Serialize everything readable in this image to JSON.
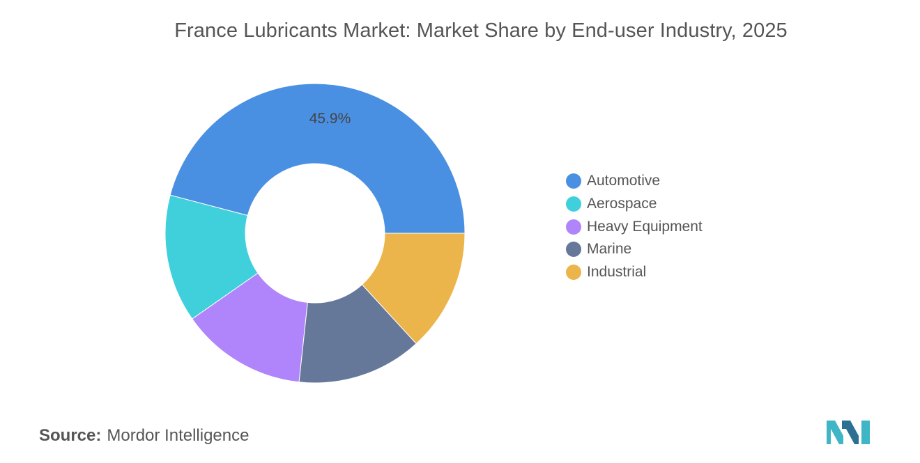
{
  "chart_data": {
    "type": "pie",
    "title": "France Lubricants Market: Market Share by End-user Industry, 2025",
    "categories": [
      "Automotive",
      "Aerospace",
      "Heavy Equipment",
      "Marine",
      "Industrial"
    ],
    "values": [
      45.9,
      13.8,
      13.6,
      13.5,
      13.2
    ],
    "data_labels": [
      {
        "category": "Automotive",
        "text": "45.9%"
      }
    ],
    "colors": [
      "#4a90e2",
      "#40d0dc",
      "#b085fb",
      "#66789a",
      "#ebb54b"
    ],
    "donut": true,
    "legend_position": "right"
  },
  "source": {
    "label": "Source:",
    "text": "Mordor Intelligence"
  },
  "logo": {
    "icon": "mordor-intelligence-logo-icon",
    "colors": [
      "#3fb5c5",
      "#2b6f93"
    ]
  }
}
